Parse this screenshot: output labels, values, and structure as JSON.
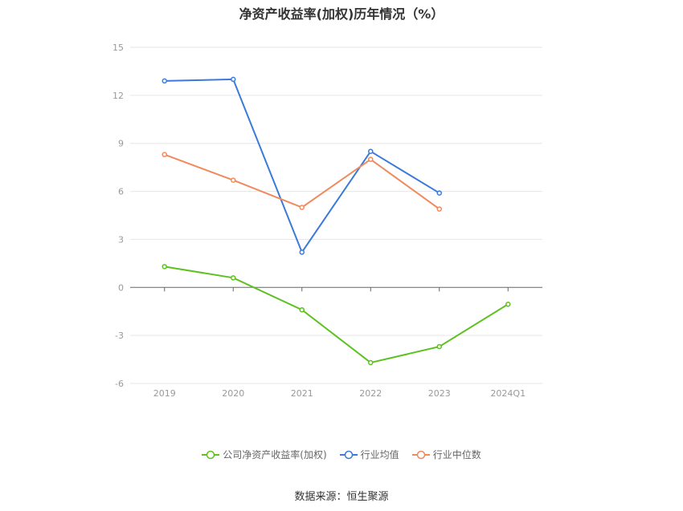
{
  "chart_data": {
    "type": "line",
    "title": "净资产收益率(加权)历年情况（%）",
    "categories": [
      "2019",
      "2020",
      "2021",
      "2022",
      "2023",
      "2024Q1"
    ],
    "ylim": [
      -6,
      15
    ],
    "yticks": [
      15,
      12,
      9,
      6,
      3,
      0,
      -3,
      -6
    ],
    "grid": true,
    "legend_position": "bottom-center",
    "series": [
      {
        "name": "公司净资产收益率(加权)",
        "color": "#5cc121",
        "values": [
          1.3,
          0.6,
          -1.4,
          -4.7,
          -3.7,
          -1.05
        ]
      },
      {
        "name": "行业均值",
        "color": "#3b7ad9",
        "values": [
          12.9,
          13.0,
          2.2,
          8.5,
          5.9,
          null
        ]
      },
      {
        "name": "行业中位数",
        "color": "#f08a5d",
        "values": [
          8.3,
          6.7,
          5.0,
          8.0,
          4.9,
          null
        ]
      }
    ]
  },
  "source": "数据来源：恒生聚源"
}
